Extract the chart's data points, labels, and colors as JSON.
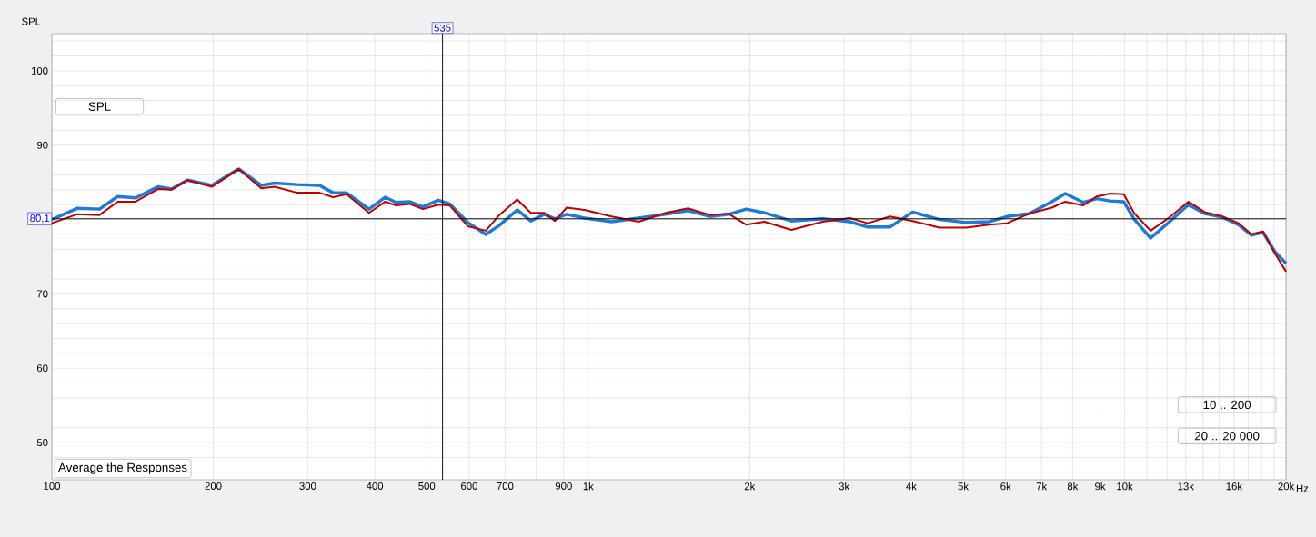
{
  "chart_data": {
    "type": "line",
    "ylabel": "SPL",
    "xlabel": "Hz",
    "x": [
      100,
      111.4,
      122.7,
      132.6,
      143.2,
      157.7,
      167.1,
      179,
      198.7,
      223,
      245.7,
      260.3,
      286.6,
      315.6,
      334.4,
      354.3,
      390.3,
      418.3,
      438.1,
      464.2,
      491.9,
      525.3,
      552.1,
      596.4,
      644.2,
      682.8,
      737.5,
      781.5,
      827.9,
      867,
      911.6,
      984.7,
      1106,
      1241,
      1394,
      1535,
      1690,
      1825,
      1971,
      2130,
      2391,
      2736,
      3073,
      3319,
      3654,
      4025,
      4518,
      5073,
      5585,
      6034,
      6643,
      7316,
      7751,
      8375,
      8874,
      9402,
      9961,
      10430,
      11180,
      12080,
      13150,
      14100,
      15230,
      16320,
      17230,
      18110,
      19050,
      20000
    ],
    "series": [
      {
        "color": "#1f7ad6",
        "values": [
          80.0,
          81.5,
          81.4,
          83.1,
          82.9,
          84.4,
          84.1,
          85.3,
          84.6,
          86.8,
          84.6,
          84.9,
          84.7,
          84.6,
          83.6,
          83.6,
          81.4,
          83.0,
          82.3,
          82.4,
          81.7,
          82.6,
          82.1,
          79.6,
          78.0,
          79.2,
          81.3,
          79.8,
          80.7,
          80.1,
          80.7,
          80.2,
          79.7,
          80.2,
          80.7,
          81.2,
          80.4,
          80.7,
          81.4,
          80.9,
          79.8,
          80.1,
          79.7,
          79.0,
          79.0,
          81.0,
          80.0,
          79.6,
          79.7,
          80.4,
          80.8,
          82.4,
          83.5,
          82.3,
          82.8,
          82.5,
          82.4,
          80.0,
          77.5,
          79.6,
          82.0,
          80.8,
          80.3,
          79.3,
          77.9,
          78.3,
          75.7,
          74.1
        ]
      },
      {
        "color": "#c00000",
        "values": [
          79.5,
          80.7,
          80.6,
          82.4,
          82.4,
          84.1,
          84.0,
          85.3,
          84.4,
          86.8,
          84.2,
          84.4,
          83.6,
          83.6,
          83.0,
          83.4,
          80.9,
          82.4,
          81.9,
          82.1,
          81.4,
          82.0,
          81.9,
          79.1,
          78.5,
          80.6,
          82.7,
          80.9,
          80.9,
          79.8,
          81.6,
          81.3,
          80.4,
          79.7,
          80.9,
          81.5,
          80.6,
          80.8,
          79.3,
          79.7,
          78.6,
          79.7,
          80.2,
          79.5,
          80.4,
          79.8,
          78.9,
          78.9,
          79.3,
          79.5,
          80.8,
          81.6,
          82.4,
          81.9,
          83.1,
          83.5,
          83.4,
          80.8,
          78.5,
          80.2,
          82.4,
          81.0,
          80.4,
          79.5,
          78.0,
          78.4,
          75.5,
          73.0
        ]
      }
    ],
    "log": "x",
    "xlim": [
      100,
      20000
    ],
    "ylim": [
      45,
      105
    ],
    "xticks": [
      100,
      200,
      300,
      400,
      500,
      600,
      700,
      {
        "value": 800,
        "label": null
      },
      900,
      {
        "value": 1000,
        "label": "1k"
      },
      {
        "value": 2000,
        "label": "2k"
      },
      {
        "value": 3000,
        "label": "3k"
      },
      {
        "value": 4000,
        "label": "4k"
      },
      {
        "value": 5000,
        "label": "5k"
      },
      {
        "value": 6000,
        "label": "6k"
      },
      {
        "value": 7000,
        "label": "7k"
      },
      {
        "value": 8000,
        "label": "8k"
      },
      {
        "value": 9000,
        "label": "9k"
      },
      {
        "value": 10000,
        "label": "10k"
      },
      {
        "value": 11000,
        "label": null
      },
      {
        "value": 12000,
        "label": null
      },
      {
        "value": 13000,
        "label": "13k"
      },
      {
        "value": 14000,
        "label": null
      },
      {
        "value": 15000,
        "label": null
      },
      {
        "value": 16000,
        "label": "16k"
      },
      {
        "value": 17000,
        "label": null
      },
      {
        "value": 18000,
        "label": null
      },
      {
        "value": 19000,
        "label": null
      },
      {
        "value": 20000,
        "label": "20k"
      }
    ],
    "yticks": [
      {
        "value": 46,
        "label": null
      },
      {
        "value": 48,
        "label": null
      },
      50,
      {
        "value": 52,
        "label": null
      },
      {
        "value": 54,
        "label": null
      },
      {
        "value": 56,
        "label": null
      },
      {
        "value": 58,
        "label": null
      },
      60,
      {
        "value": 62,
        "label": null
      },
      {
        "value": 64,
        "label": null
      },
      {
        "value": 66,
        "label": null
      },
      {
        "value": 68,
        "label": null
      },
      70,
      {
        "value": 72,
        "label": null
      },
      {
        "value": 74,
        "label": null
      },
      {
        "value": 76,
        "label": null
      },
      {
        "value": 78,
        "label": null
      },
      {
        "value": 80,
        "label": null
      },
      {
        "value": 82,
        "label": null
      },
      {
        "value": 84,
        "label": null
      },
      {
        "value": 86,
        "label": null
      },
      {
        "value": 88,
        "label": null
      },
      90,
      {
        "value": 92,
        "label": null
      },
      {
        "value": 94,
        "label": null
      },
      {
        "value": 96,
        "label": null
      },
      {
        "value": 98,
        "label": null
      },
      100,
      {
        "value": 102,
        "label": null
      },
      {
        "value": 104,
        "label": null
      }
    ],
    "grid": true,
    "marker": "none",
    "line_style": "solid",
    "ref_lines": [
      {
        "axis": "x",
        "value": 535,
        "label": "535",
        "color": "#000000"
      },
      {
        "axis": "y",
        "value": 80.1,
        "label": "80,1",
        "color": "#000000"
      }
    ],
    "annotations": [
      "SPL",
      "Average the Responses",
      "10 .. 200",
      "20 .. 20 000"
    ]
  }
}
